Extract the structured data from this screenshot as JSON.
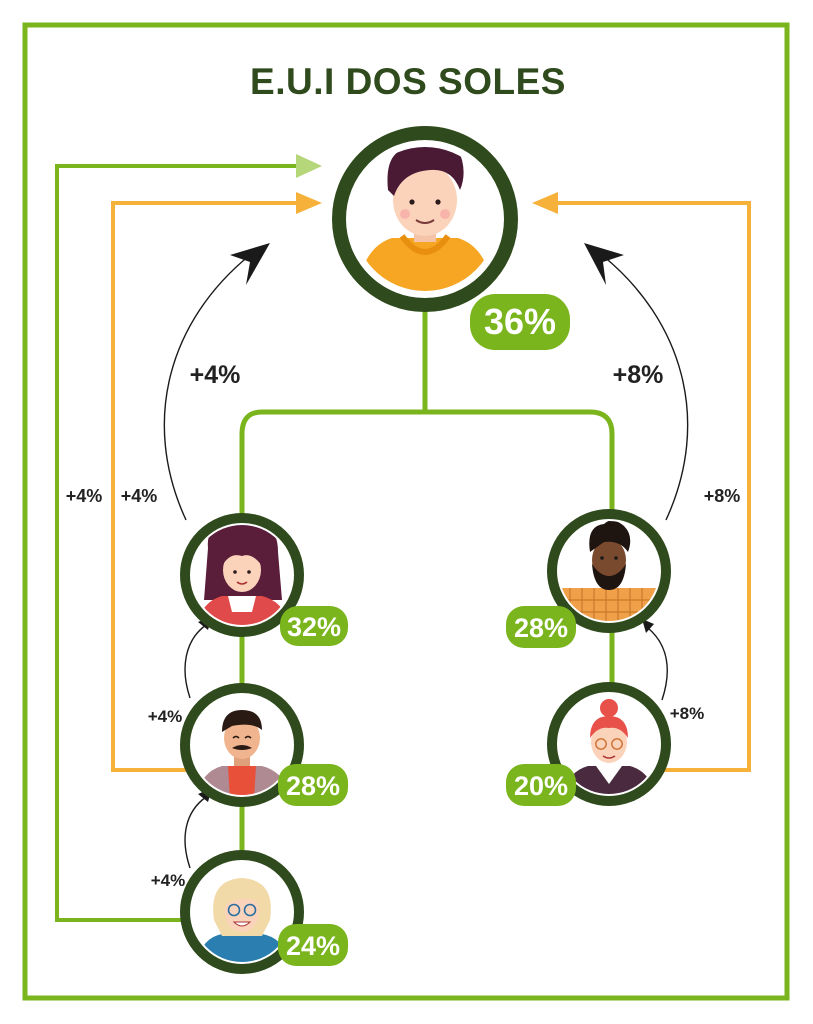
{
  "title": "E.U.I DOS SOLES",
  "colors": {
    "frame": "#7ab51d",
    "ring": "#2f4a1c",
    "badge": "#7ab51d",
    "orange_arrow": "#f6b13a",
    "green_arrow": "#7ab51d",
    "black_arrow": "#1a1a1a"
  },
  "nodes": {
    "top": {
      "percent": "36%",
      "avatar": "young-man-orange-hoodie"
    },
    "left_1": {
      "percent": "32%",
      "avatar": "woman-red-jacket"
    },
    "left_2": {
      "percent": "28%",
      "avatar": "man-mustache-mauve-jacket"
    },
    "left_3": {
      "percent": "24%",
      "avatar": "blonde-woman-glasses"
    },
    "right_1": {
      "percent": "28%",
      "avatar": "bearded-man-plaid-shirt"
    },
    "right_2": {
      "percent": "20%",
      "avatar": "redhead-woman-glasses"
    }
  },
  "labels": {
    "left_big": "+4%",
    "right_big": "+8%",
    "left_outer_green": "+4%",
    "left_outer_orange": "+4%",
    "right_outer": "+8%",
    "left_step_1": "+4%",
    "left_step_2": "+4%",
    "right_step": "+8%"
  }
}
